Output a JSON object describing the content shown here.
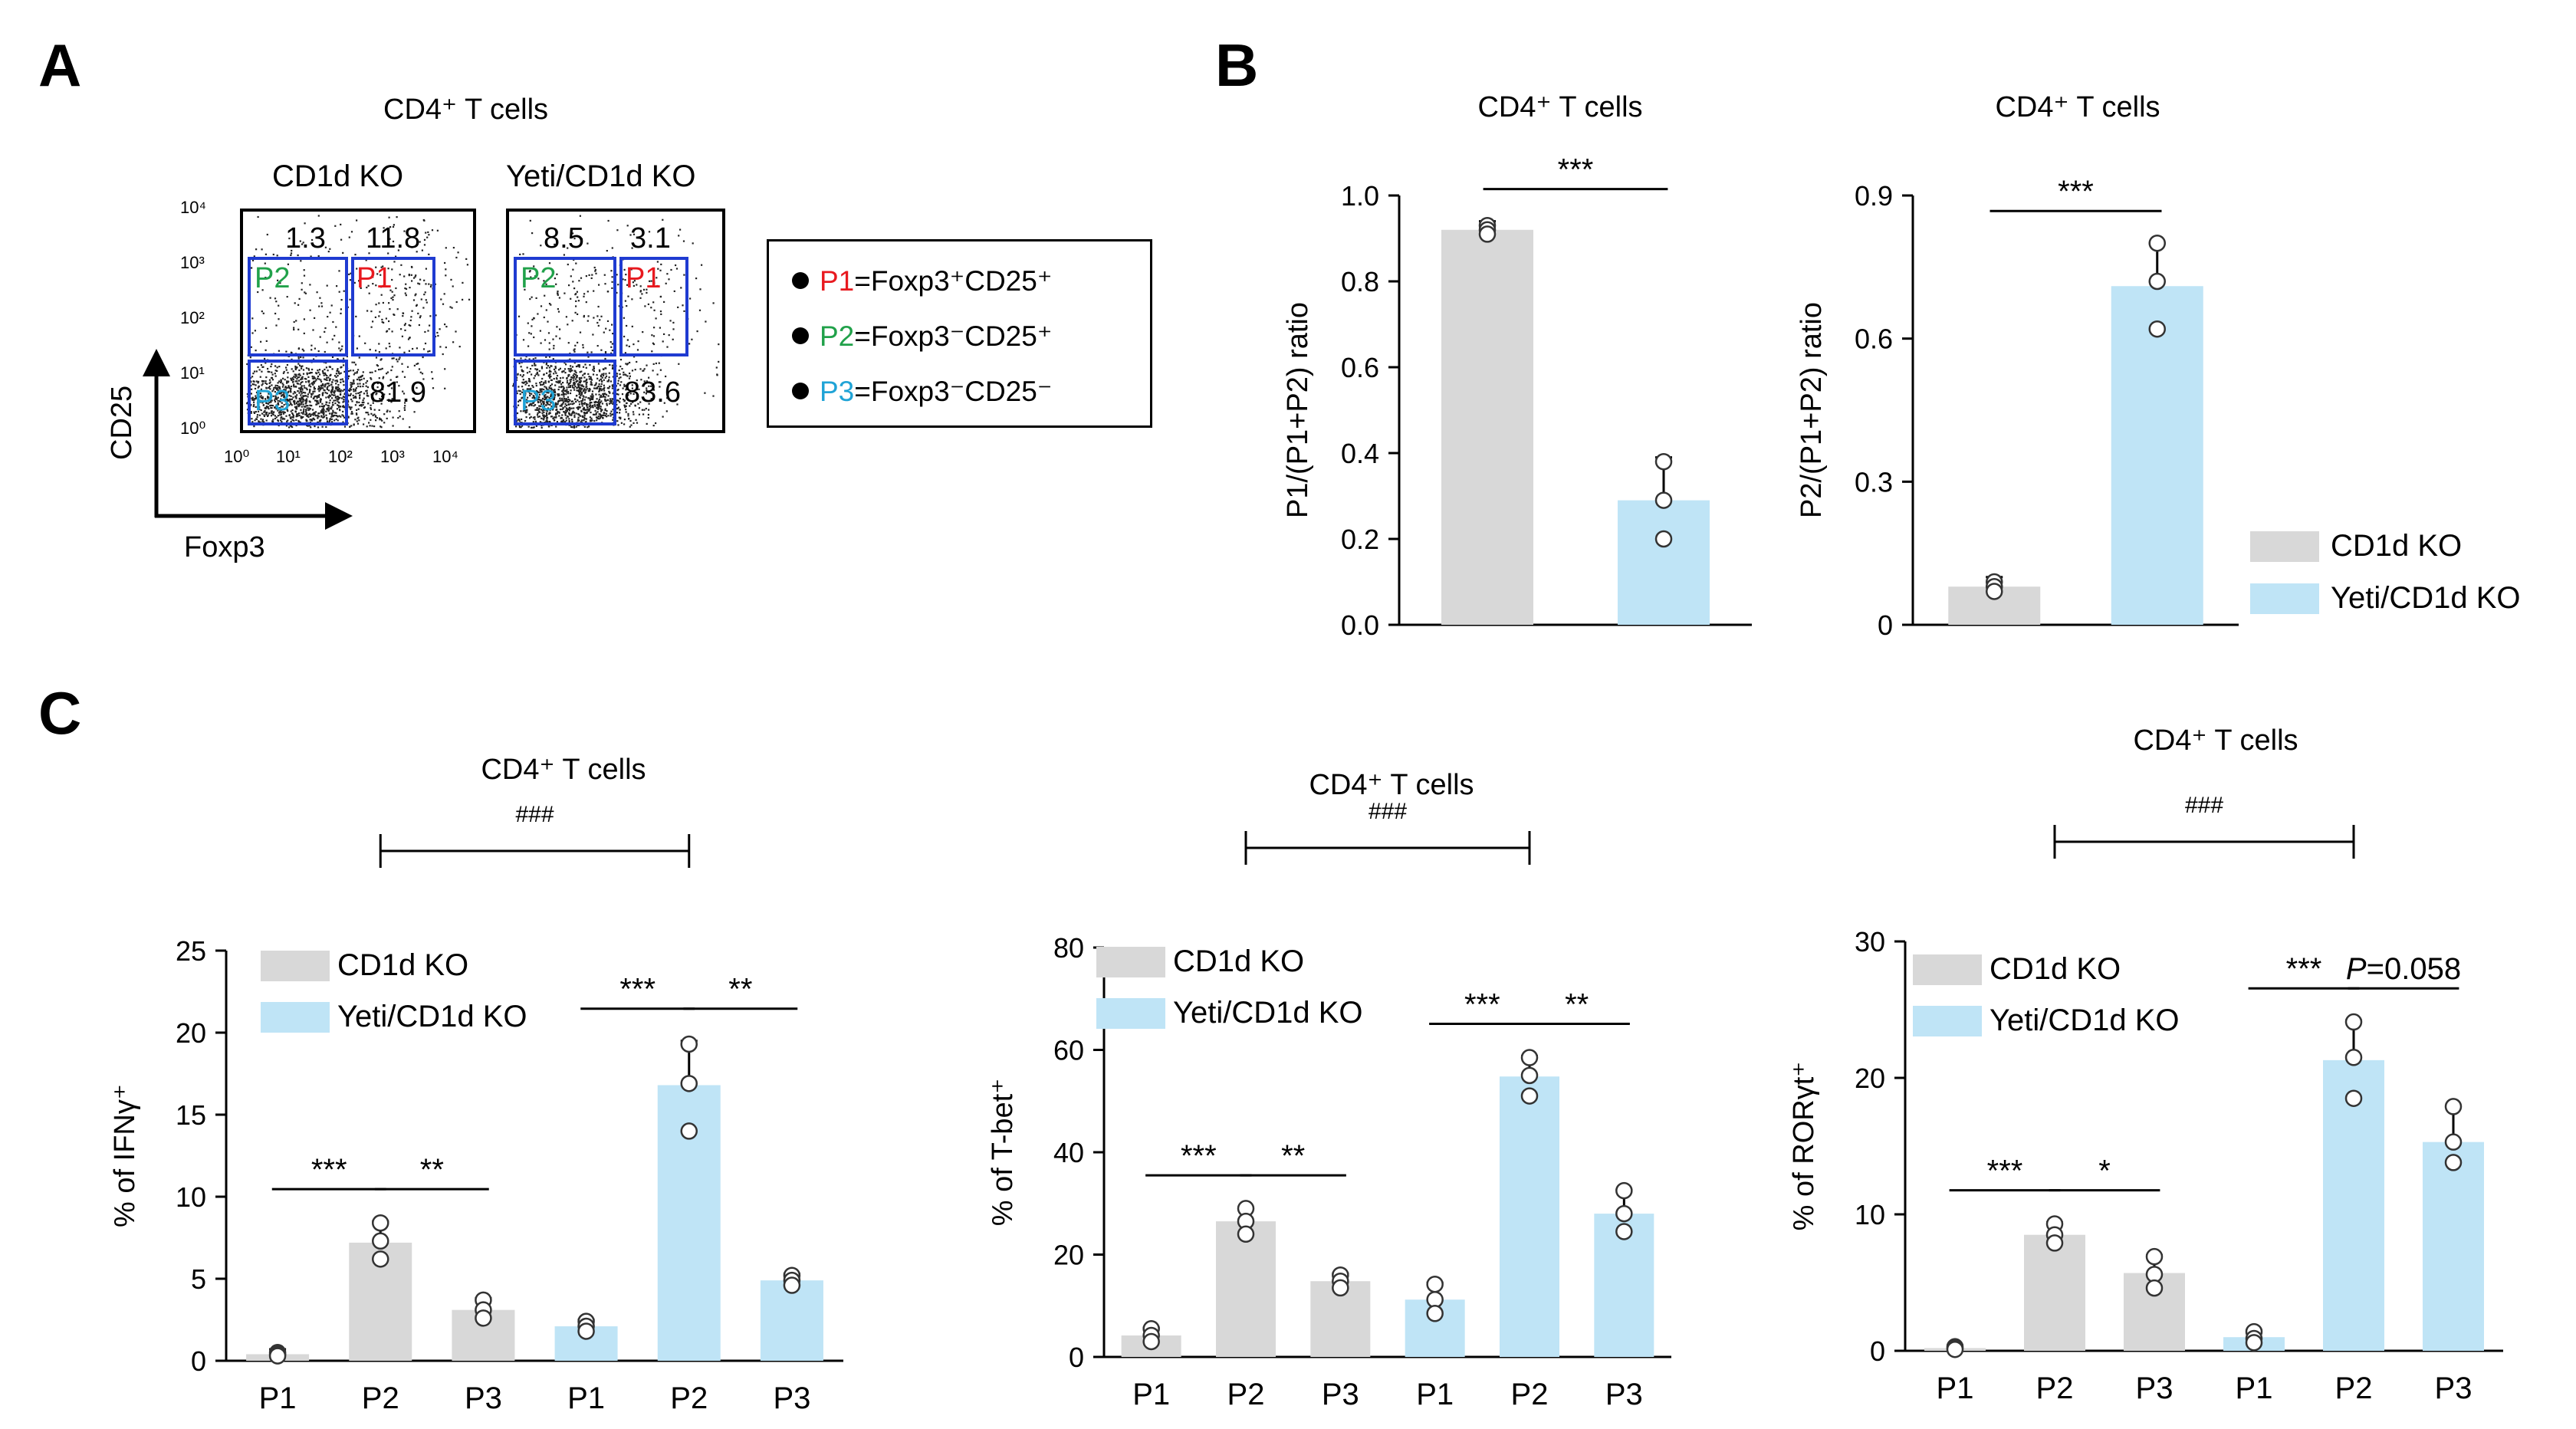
{
  "colors": {
    "cd1d": "#d8d8d8",
    "yeti": "#bfe4f6",
    "p1": "#e8191f",
    "p2": "#21a14a",
    "p3": "#1fa3d6",
    "gate": "#1f3bd1"
  },
  "panels": {
    "a": "A",
    "b": "B",
    "c": "C"
  },
  "panel_a": {
    "title": "CD4⁺ T cells",
    "plots": [
      {
        "title": "CD1d KO",
        "tl": "1.3",
        "tr": "11.8",
        "br": "81.9"
      },
      {
        "title": "Yeti/CD1d KO",
        "tl": "8.5",
        "tr": "3.1",
        "br": "83.6"
      }
    ],
    "gate_labels": {
      "p1": "P1",
      "p2": "P2",
      "p3": "P3"
    },
    "y_ticks": [
      "10⁴",
      "10³",
      "10²",
      "10¹",
      "10⁰"
    ],
    "x_ticks": [
      "10⁰",
      "10¹",
      "10²",
      "10³",
      "10⁴"
    ],
    "y_axis": "CD25",
    "x_axis": "Foxp3",
    "legend": [
      {
        "id": "P1",
        "def": "=Foxp3⁺CD25⁺"
      },
      {
        "id": "P2",
        "def": "=Foxp3⁻CD25⁺"
      },
      {
        "id": "P3",
        "def": "=Foxp3⁻CD25⁻"
      }
    ]
  },
  "legend_groups": {
    "cd1d": "CD1d KO",
    "yeti": "Yeti/CD1d KO"
  },
  "chart_data": [
    {
      "type": "bar",
      "panel": "B-left",
      "title": "CD4⁺ T cells",
      "ylabel": "P1/(P1+P2) ratio",
      "ylim": [
        0,
        1.0
      ],
      "yticks": [
        "0.0",
        "0.2",
        "0.4",
        "0.6",
        "0.8",
        "1.0"
      ],
      "categories": [
        "CD1d KO",
        "Yeti/CD1d KO"
      ],
      "values": [
        0.92,
        0.29
      ],
      "error_up": [
        0.02,
        0.1
      ],
      "points": [
        [
          0.93,
          0.92,
          0.91
        ],
        [
          0.38,
          0.29,
          0.2
        ]
      ],
      "brackets": [
        {
          "from": 0,
          "to": 1,
          "label": "***"
        }
      ]
    },
    {
      "type": "bar",
      "panel": "B-right",
      "title": "CD4⁺ T cells",
      "ylabel": "P2/(P1+P2) ratio",
      "ylim": [
        0,
        0.9
      ],
      "yticks": [
        "0",
        "0.3",
        "0.6",
        "0.9"
      ],
      "categories": [
        "CD1d KO",
        "Yeti/CD1d KO"
      ],
      "values": [
        0.08,
        0.71
      ],
      "error_up": [
        0.02,
        0.09
      ],
      "points": [
        [
          0.09,
          0.08,
          0.07
        ],
        [
          0.8,
          0.72,
          0.62
        ]
      ],
      "brackets": [
        {
          "from": 0,
          "to": 1,
          "label": "***"
        }
      ]
    },
    {
      "type": "bar",
      "panel": "C-1",
      "title": "CD4⁺ T cells",
      "ylabel": "% of IFNγ⁺",
      "ylim": [
        0,
        25
      ],
      "yticks": [
        "0",
        "5",
        "10",
        "15",
        "20",
        "25"
      ],
      "categories": [
        "P1",
        "P2",
        "P3",
        "P1",
        "P2",
        "P3"
      ],
      "values": [
        0.4,
        7.2,
        3.1,
        2.1,
        16.8,
        4.9
      ],
      "error_up": [
        0.3,
        1.3,
        0.7,
        0.4,
        2.7,
        0.4
      ],
      "points": [
        [
          0.5,
          0.4,
          0.3
        ],
        [
          8.4,
          7.3,
          6.2
        ],
        [
          3.7,
          3.1,
          2.6
        ],
        [
          2.4,
          2.1,
          1.8
        ],
        [
          19.3,
          16.9,
          14.0
        ],
        [
          5.2,
          4.9,
          4.6
        ]
      ],
      "brackets": [
        {
          "from": 0,
          "to": 1,
          "label": "***"
        },
        {
          "from": 1,
          "to": 2,
          "label": "**"
        },
        {
          "from": 3,
          "to": 4,
          "label": "***"
        },
        {
          "from": 4,
          "to": 5,
          "label": "**"
        }
      ],
      "top_bracket": {
        "from": 1,
        "to": 4,
        "label": "###"
      }
    },
    {
      "type": "bar",
      "panel": "C-2",
      "title": "CD4⁺ T cells",
      "ylabel": "% of T-bet⁺",
      "ylim": [
        0,
        80
      ],
      "yticks": [
        "0",
        "20",
        "40",
        "60",
        "80"
      ],
      "categories": [
        "P1",
        "P2",
        "P3",
        "P1",
        "P2",
        "P3"
      ],
      "values": [
        4.2,
        26.5,
        14.8,
        11.2,
        54.8,
        28.0
      ],
      "error_up": [
        1.5,
        2.7,
        1.5,
        3.3,
        4.0,
        4.6
      ],
      "points": [
        [
          5.5,
          4.2,
          3.0
        ],
        [
          29.0,
          26.5,
          24.0
        ],
        [
          16.0,
          14.8,
          13.5
        ],
        [
          14.2,
          11.2,
          8.5
        ],
        [
          58.5,
          55.0,
          51.0
        ],
        [
          32.5,
          28.0,
          24.5
        ]
      ],
      "brackets": [
        {
          "from": 0,
          "to": 1,
          "label": "***"
        },
        {
          "from": 1,
          "to": 2,
          "label": "**"
        },
        {
          "from": 3,
          "to": 4,
          "label": "***"
        },
        {
          "from": 4,
          "to": 5,
          "label": "**"
        }
      ],
      "top_bracket": {
        "from": 1,
        "to": 4,
        "label": "###"
      }
    },
    {
      "type": "bar",
      "panel": "C-3",
      "title": "CD4⁺ T cells",
      "ylabel": "% of RORγt⁺",
      "ylim": [
        0,
        30
      ],
      "yticks": [
        "0",
        "10",
        "20",
        "30"
      ],
      "categories": [
        "P1",
        "P2",
        "P3",
        "P1",
        "P2",
        "P3"
      ],
      "values": [
        0.2,
        8.5,
        5.7,
        1.0,
        21.3,
        15.3
      ],
      "error_up": [
        0.2,
        0.9,
        1.3,
        0.5,
        2.9,
        2.6
      ],
      "points": [
        [
          0.3,
          0.2,
          0.1
        ],
        [
          9.3,
          8.5,
          7.9
        ],
        [
          6.9,
          5.6,
          4.6
        ],
        [
          1.4,
          0.9,
          0.6
        ],
        [
          24.1,
          21.5,
          18.5
        ],
        [
          17.9,
          15.3,
          13.8
        ]
      ],
      "brackets": [
        {
          "from": 0,
          "to": 1,
          "label": "***"
        },
        {
          "from": 1,
          "to": 2,
          "label": "*"
        },
        {
          "from": 3,
          "to": 4,
          "label": "***"
        },
        {
          "from": 4,
          "to": 5,
          "label": "=0.058",
          "prefix": "P"
        }
      ],
      "top_bracket": {
        "from": 1,
        "to": 4,
        "label": "###"
      }
    }
  ]
}
